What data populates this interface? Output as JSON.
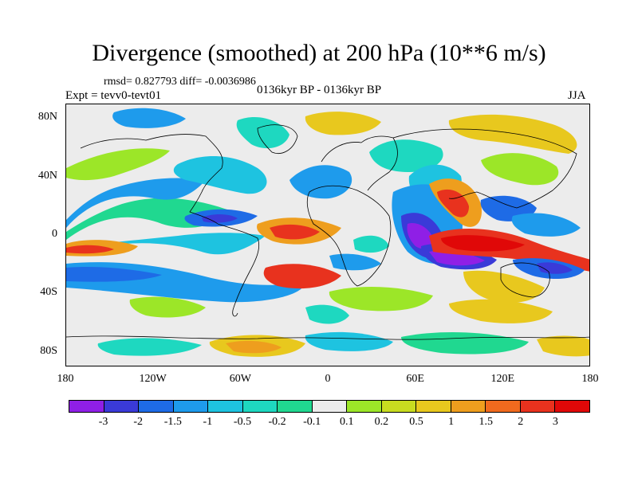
{
  "header": {
    "title": "Divergence (smoothed) at 200 hPa (10**6 m/s)",
    "stats": "rmsd= 0.827793 diff= -0.0036986",
    "experiment": "Expt = tevv0-tevt01",
    "period": "0136kyr BP - 0136kyr BP",
    "season": "JJA"
  },
  "map": {
    "projection": "cylindrical-equidistant",
    "lon_range": [
      -180,
      180
    ],
    "lat_range": [
      -90,
      90
    ],
    "ytick_labels": [
      {
        "label": "80N",
        "lat": 80
      },
      {
        "label": "40N",
        "lat": 40
      },
      {
        "label": "0",
        "lat": 0
      },
      {
        "label": "40S",
        "lat": -40
      },
      {
        "label": "80S",
        "lat": -80
      }
    ],
    "xtick_labels": [
      {
        "label": "180",
        "lon": -180
      },
      {
        "label": "120W",
        "lon": -120
      },
      {
        "label": "60W",
        "lon": -60
      },
      {
        "label": "0",
        "lon": 0
      },
      {
        "label": "60E",
        "lon": 60
      },
      {
        "label": "120E",
        "lon": 120
      },
      {
        "label": "180",
        "lon": 180
      }
    ],
    "background_color": "#ececec",
    "coastline_color": "#000000"
  },
  "colorbar": {
    "colors": [
      "#8f1fe6",
      "#3a3ad8",
      "#1e6be6",
      "#1e9bec",
      "#1ec3e0",
      "#1ed8c0",
      "#20d890",
      "#ececec",
      "#9ce628",
      "#c8dc20",
      "#e8c81e",
      "#ee9e1e",
      "#f06a1e",
      "#e8321e",
      "#e00808"
    ],
    "labels": [
      "-3",
      "-2",
      "-1.5",
      "-1",
      "-0.5",
      "-0.2",
      "-0.1",
      "0.1",
      "0.2",
      "0.5",
      "1",
      "1.5",
      "2",
      "3"
    ]
  }
}
